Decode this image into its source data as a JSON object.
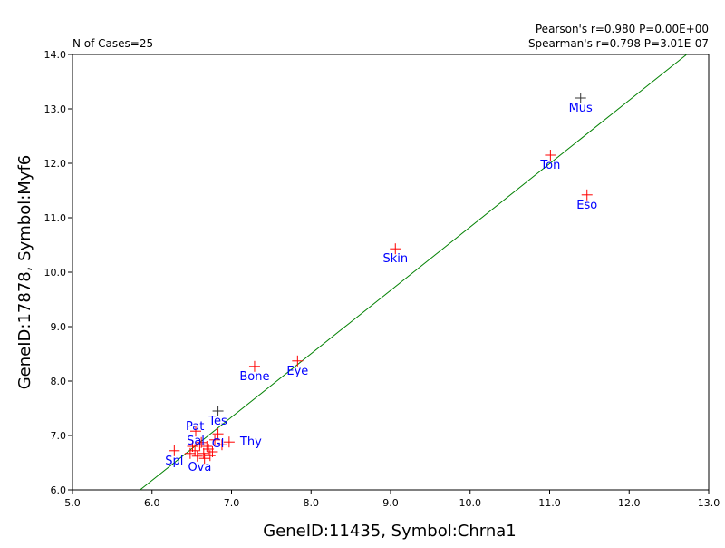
{
  "chart_data": {
    "type": "scatter",
    "xlabel": "GeneID:11435, Symbol:Chrna1",
    "ylabel": "GeneID:17878, Symbol:Myf6",
    "xlim": [
      5.0,
      13.0
    ],
    "ylim": [
      6.0,
      14.0
    ],
    "xticks": [
      "5.0",
      "6.0",
      "7.0",
      "8.0",
      "9.0",
      "10.0",
      "11.0",
      "12.0",
      "13.0"
    ],
    "yticks": [
      "6.0",
      "7.0",
      "8.0",
      "9.0",
      "10.0",
      "11.0",
      "12.0",
      "13.0",
      "14.0"
    ],
    "grid": false,
    "n_cases": "N of Cases=25",
    "pearson": "Pearson's r=0.980 P=0.00E+00",
    "spearman": "Spearman's r=0.798 P=3.01E-07",
    "fit_line": {
      "slope": 1.164,
      "intercept": -0.81,
      "color": "#008000"
    },
    "colors": {
      "marker": "#ff0000",
      "marker_alt": "#333333",
      "label": "#0000ff"
    },
    "points": [
      {
        "x": 11.39,
        "y": 13.2,
        "label": "Mus",
        "alt": true
      },
      {
        "x": 11.01,
        "y": 12.15,
        "label": "Ton"
      },
      {
        "x": 11.47,
        "y": 11.42,
        "label": "Eso"
      },
      {
        "x": 9.06,
        "y": 10.43,
        "label": "Skin"
      },
      {
        "x": 7.29,
        "y": 8.27,
        "label": "Bone"
      },
      {
        "x": 7.83,
        "y": 8.37,
        "label": "Eye"
      },
      {
        "x": 6.83,
        "y": 7.45,
        "label": "Tes",
        "alt": true
      },
      {
        "x": 6.55,
        "y": 7.08,
        "label": "Sal"
      },
      {
        "x": 6.83,
        "y": 7.03,
        "label": "Gl"
      },
      {
        "x": 6.28,
        "y": 6.72,
        "label": "Spl"
      },
      {
        "x": 6.97,
        "y": 6.88,
        "label": "Thy"
      },
      {
        "x": 6.79,
        "y": 6.92,
        "label": ""
      },
      {
        "x": 6.6,
        "y": 6.83,
        "label": "Ova"
      },
      {
        "x": 6.69,
        "y": 6.8,
        "label": ""
      },
      {
        "x": 6.54,
        "y": 6.72,
        "label": "Pat"
      },
      {
        "x": 6.65,
        "y": 6.67,
        "label": ""
      },
      {
        "x": 6.71,
        "y": 6.75,
        "label": ""
      },
      {
        "x": 6.57,
        "y": 6.62,
        "label": ""
      },
      {
        "x": 6.76,
        "y": 6.7,
        "label": ""
      },
      {
        "x": 6.51,
        "y": 6.8,
        "label": ""
      },
      {
        "x": 6.62,
        "y": 6.87,
        "label": ""
      },
      {
        "x": 6.88,
        "y": 6.83,
        "label": ""
      },
      {
        "x": 6.48,
        "y": 6.67,
        "label": ""
      },
      {
        "x": 6.73,
        "y": 6.63,
        "label": ""
      },
      {
        "x": 6.66,
        "y": 6.58,
        "label": ""
      }
    ]
  }
}
